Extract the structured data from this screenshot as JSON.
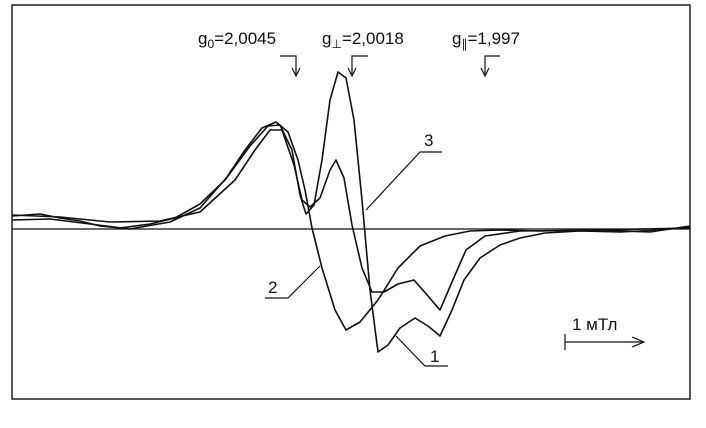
{
  "g_labels": [
    {
      "symbol": "g",
      "sub": "0",
      "value": "=2,0045"
    },
    {
      "symbol": "g",
      "sub": "⊥",
      "value": "=2,0018"
    },
    {
      "symbol": "g",
      "sub": "∥",
      "value": "=1,997"
    }
  ],
  "curve_labels": [
    "3",
    "2",
    "1"
  ],
  "scale_label": "1 мТл"
}
